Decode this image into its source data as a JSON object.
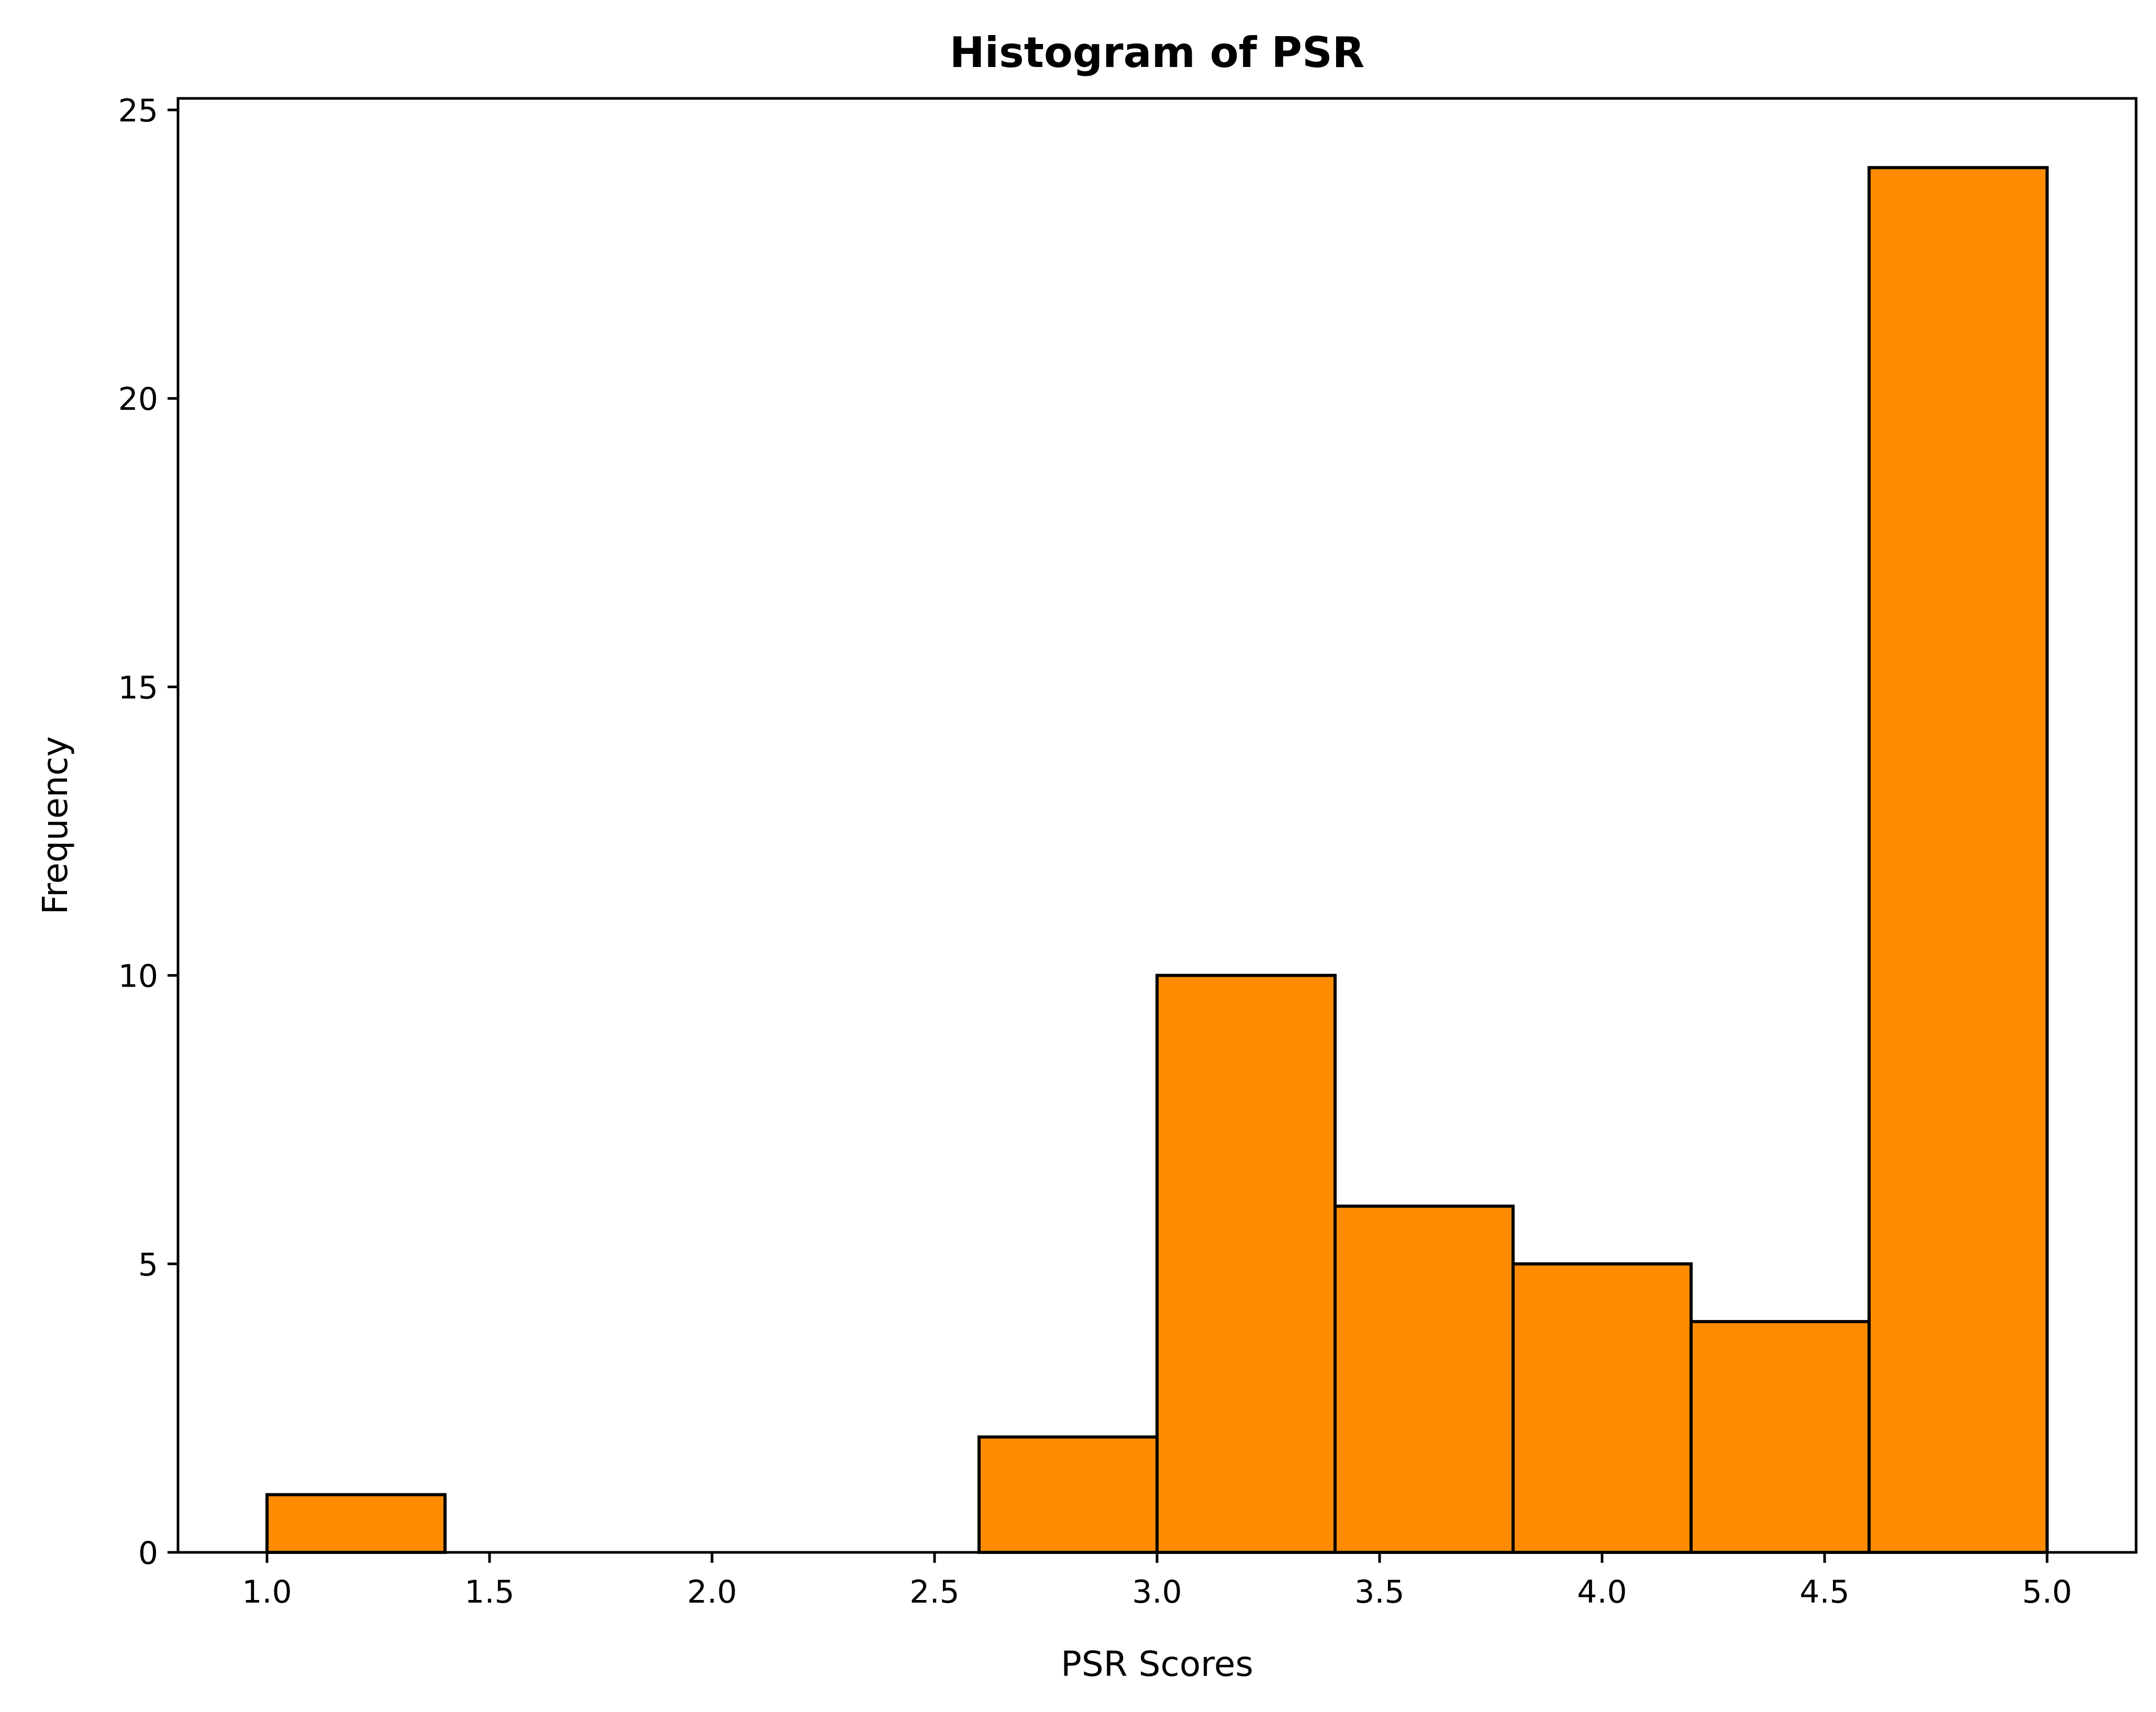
{
  "chart_data": {
    "type": "bar",
    "title": "Histogram of PSR",
    "xlabel": "PSR Scores",
    "ylabel": "Frequency",
    "bar_color": "#ff8c00",
    "edge_color": "#000000",
    "bins": [
      {
        "start": 1.0,
        "end": 1.4,
        "value": 1
      },
      {
        "start": 1.4,
        "end": 1.8,
        "value": 0
      },
      {
        "start": 1.8,
        "end": 2.2,
        "value": 0
      },
      {
        "start": 2.2,
        "end": 2.6,
        "value": 0
      },
      {
        "start": 2.6,
        "end": 3.0,
        "value": 2
      },
      {
        "start": 3.0,
        "end": 3.4,
        "value": 10
      },
      {
        "start": 3.4,
        "end": 3.8,
        "value": 6
      },
      {
        "start": 3.8,
        "end": 4.2,
        "value": 5
      },
      {
        "start": 4.2,
        "end": 4.6,
        "value": 4
      },
      {
        "start": 4.6,
        "end": 5.0,
        "value": 24
      }
    ],
    "xlim": [
      0.8,
      5.2
    ],
    "ylim": [
      0,
      25.2
    ],
    "xticks": [
      "1.0",
      "1.5",
      "2.0",
      "2.5",
      "3.0",
      "3.5",
      "4.0",
      "4.5",
      "5.0"
    ],
    "yticks": [
      "0",
      "5",
      "10",
      "15",
      "20",
      "25"
    ],
    "grid": false,
    "legend": "none"
  }
}
